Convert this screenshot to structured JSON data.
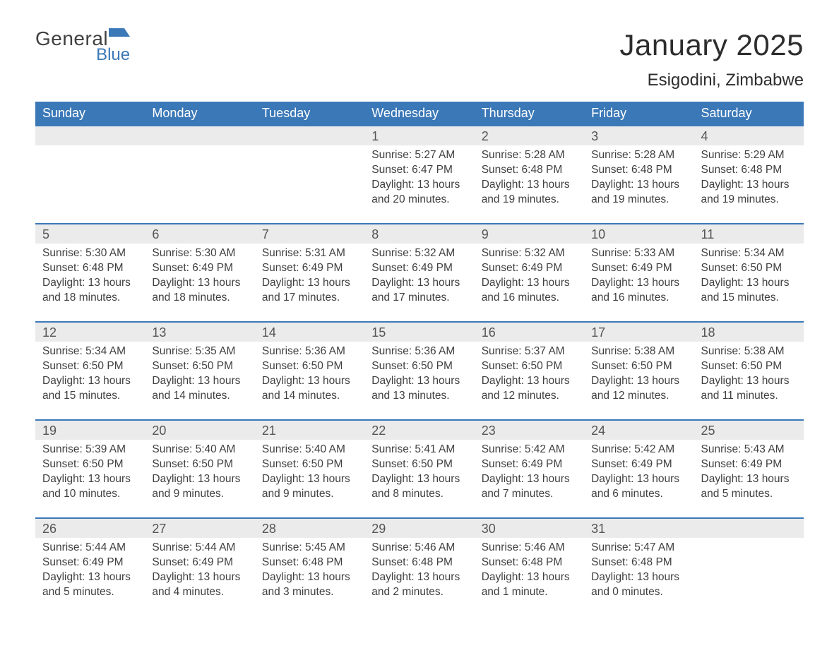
{
  "brand": {
    "general": "General",
    "blue": "Blue",
    "flag_color": "#3b78b8"
  },
  "title": "January 2025",
  "subtitle": "Esigodini, Zimbabwe",
  "colors": {
    "header_bg": "#3b78b8",
    "header_text": "#ffffff",
    "daynum_bg": "#ebebeb",
    "border_top": "#3b78b8",
    "text": "#404040",
    "page_bg": "#ffffff"
  },
  "weekdays": [
    "Sunday",
    "Monday",
    "Tuesday",
    "Wednesday",
    "Thursday",
    "Friday",
    "Saturday"
  ],
  "weeks": [
    {
      "days": [
        null,
        null,
        null,
        {
          "n": "1",
          "sunrise": "Sunrise: 5:27 AM",
          "sunset": "Sunset: 6:47 PM",
          "daylight": "Daylight: 13 hours and 20 minutes."
        },
        {
          "n": "2",
          "sunrise": "Sunrise: 5:28 AM",
          "sunset": "Sunset: 6:48 PM",
          "daylight": "Daylight: 13 hours and 19 minutes."
        },
        {
          "n": "3",
          "sunrise": "Sunrise: 5:28 AM",
          "sunset": "Sunset: 6:48 PM",
          "daylight": "Daylight: 13 hours and 19 minutes."
        },
        {
          "n": "4",
          "sunrise": "Sunrise: 5:29 AM",
          "sunset": "Sunset: 6:48 PM",
          "daylight": "Daylight: 13 hours and 19 minutes."
        }
      ]
    },
    {
      "days": [
        {
          "n": "5",
          "sunrise": "Sunrise: 5:30 AM",
          "sunset": "Sunset: 6:48 PM",
          "daylight": "Daylight: 13 hours and 18 minutes."
        },
        {
          "n": "6",
          "sunrise": "Sunrise: 5:30 AM",
          "sunset": "Sunset: 6:49 PM",
          "daylight": "Daylight: 13 hours and 18 minutes."
        },
        {
          "n": "7",
          "sunrise": "Sunrise: 5:31 AM",
          "sunset": "Sunset: 6:49 PM",
          "daylight": "Daylight: 13 hours and 17 minutes."
        },
        {
          "n": "8",
          "sunrise": "Sunrise: 5:32 AM",
          "sunset": "Sunset: 6:49 PM",
          "daylight": "Daylight: 13 hours and 17 minutes."
        },
        {
          "n": "9",
          "sunrise": "Sunrise: 5:32 AM",
          "sunset": "Sunset: 6:49 PM",
          "daylight": "Daylight: 13 hours and 16 minutes."
        },
        {
          "n": "10",
          "sunrise": "Sunrise: 5:33 AM",
          "sunset": "Sunset: 6:49 PM",
          "daylight": "Daylight: 13 hours and 16 minutes."
        },
        {
          "n": "11",
          "sunrise": "Sunrise: 5:34 AM",
          "sunset": "Sunset: 6:50 PM",
          "daylight": "Daylight: 13 hours and 15 minutes."
        }
      ]
    },
    {
      "days": [
        {
          "n": "12",
          "sunrise": "Sunrise: 5:34 AM",
          "sunset": "Sunset: 6:50 PM",
          "daylight": "Daylight: 13 hours and 15 minutes."
        },
        {
          "n": "13",
          "sunrise": "Sunrise: 5:35 AM",
          "sunset": "Sunset: 6:50 PM",
          "daylight": "Daylight: 13 hours and 14 minutes."
        },
        {
          "n": "14",
          "sunrise": "Sunrise: 5:36 AM",
          "sunset": "Sunset: 6:50 PM",
          "daylight": "Daylight: 13 hours and 14 minutes."
        },
        {
          "n": "15",
          "sunrise": "Sunrise: 5:36 AM",
          "sunset": "Sunset: 6:50 PM",
          "daylight": "Daylight: 13 hours and 13 minutes."
        },
        {
          "n": "16",
          "sunrise": "Sunrise: 5:37 AM",
          "sunset": "Sunset: 6:50 PM",
          "daylight": "Daylight: 13 hours and 12 minutes."
        },
        {
          "n": "17",
          "sunrise": "Sunrise: 5:38 AM",
          "sunset": "Sunset: 6:50 PM",
          "daylight": "Daylight: 13 hours and 12 minutes."
        },
        {
          "n": "18",
          "sunrise": "Sunrise: 5:38 AM",
          "sunset": "Sunset: 6:50 PM",
          "daylight": "Daylight: 13 hours and 11 minutes."
        }
      ]
    },
    {
      "days": [
        {
          "n": "19",
          "sunrise": "Sunrise: 5:39 AM",
          "sunset": "Sunset: 6:50 PM",
          "daylight": "Daylight: 13 hours and 10 minutes."
        },
        {
          "n": "20",
          "sunrise": "Sunrise: 5:40 AM",
          "sunset": "Sunset: 6:50 PM",
          "daylight": "Daylight: 13 hours and 9 minutes."
        },
        {
          "n": "21",
          "sunrise": "Sunrise: 5:40 AM",
          "sunset": "Sunset: 6:50 PM",
          "daylight": "Daylight: 13 hours and 9 minutes."
        },
        {
          "n": "22",
          "sunrise": "Sunrise: 5:41 AM",
          "sunset": "Sunset: 6:50 PM",
          "daylight": "Daylight: 13 hours and 8 minutes."
        },
        {
          "n": "23",
          "sunrise": "Sunrise: 5:42 AM",
          "sunset": "Sunset: 6:49 PM",
          "daylight": "Daylight: 13 hours and 7 minutes."
        },
        {
          "n": "24",
          "sunrise": "Sunrise: 5:42 AM",
          "sunset": "Sunset: 6:49 PM",
          "daylight": "Daylight: 13 hours and 6 minutes."
        },
        {
          "n": "25",
          "sunrise": "Sunrise: 5:43 AM",
          "sunset": "Sunset: 6:49 PM",
          "daylight": "Daylight: 13 hours and 5 minutes."
        }
      ]
    },
    {
      "days": [
        {
          "n": "26",
          "sunrise": "Sunrise: 5:44 AM",
          "sunset": "Sunset: 6:49 PM",
          "daylight": "Daylight: 13 hours and 5 minutes."
        },
        {
          "n": "27",
          "sunrise": "Sunrise: 5:44 AM",
          "sunset": "Sunset: 6:49 PM",
          "daylight": "Daylight: 13 hours and 4 minutes."
        },
        {
          "n": "28",
          "sunrise": "Sunrise: 5:45 AM",
          "sunset": "Sunset: 6:48 PM",
          "daylight": "Daylight: 13 hours and 3 minutes."
        },
        {
          "n": "29",
          "sunrise": "Sunrise: 5:46 AM",
          "sunset": "Sunset: 6:48 PM",
          "daylight": "Daylight: 13 hours and 2 minutes."
        },
        {
          "n": "30",
          "sunrise": "Sunrise: 5:46 AM",
          "sunset": "Sunset: 6:48 PM",
          "daylight": "Daylight: 13 hours and 1 minute."
        },
        {
          "n": "31",
          "sunrise": "Sunrise: 5:47 AM",
          "sunset": "Sunset: 6:48 PM",
          "daylight": "Daylight: 13 hours and 0 minutes."
        },
        null
      ]
    }
  ]
}
